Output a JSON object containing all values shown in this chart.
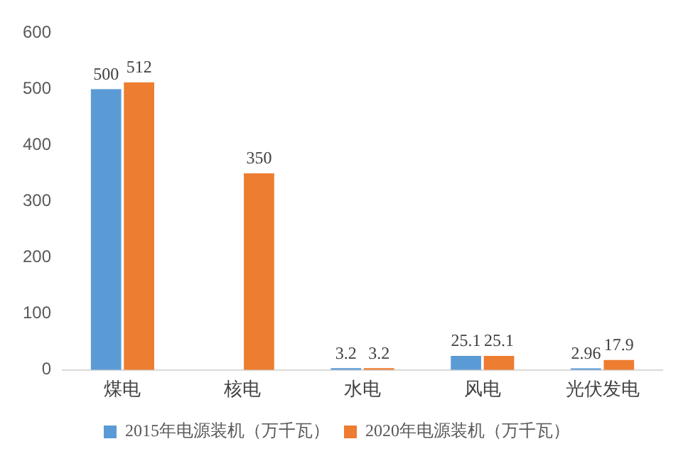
{
  "chart_data": {
    "type": "bar",
    "categories": [
      "煤电",
      "核电",
      "水电",
      "风电",
      "光伏发电"
    ],
    "series": [
      {
        "name": "2015年电源装机（万千瓦）",
        "color": "#5b9bd5",
        "values": [
          500,
          null,
          3.2,
          25.1,
          2.96
        ]
      },
      {
        "name": "2020年电源装机（万千瓦）",
        "color": "#ed7d31",
        "values": [
          512,
          350,
          3.2,
          25.1,
          17.9
        ]
      }
    ],
    "ylim": [
      0,
      600
    ],
    "yticks": [
      0,
      100,
      200,
      300,
      400,
      500,
      600
    ],
    "grid": false,
    "legend": "bottom",
    "data_labels": true
  }
}
